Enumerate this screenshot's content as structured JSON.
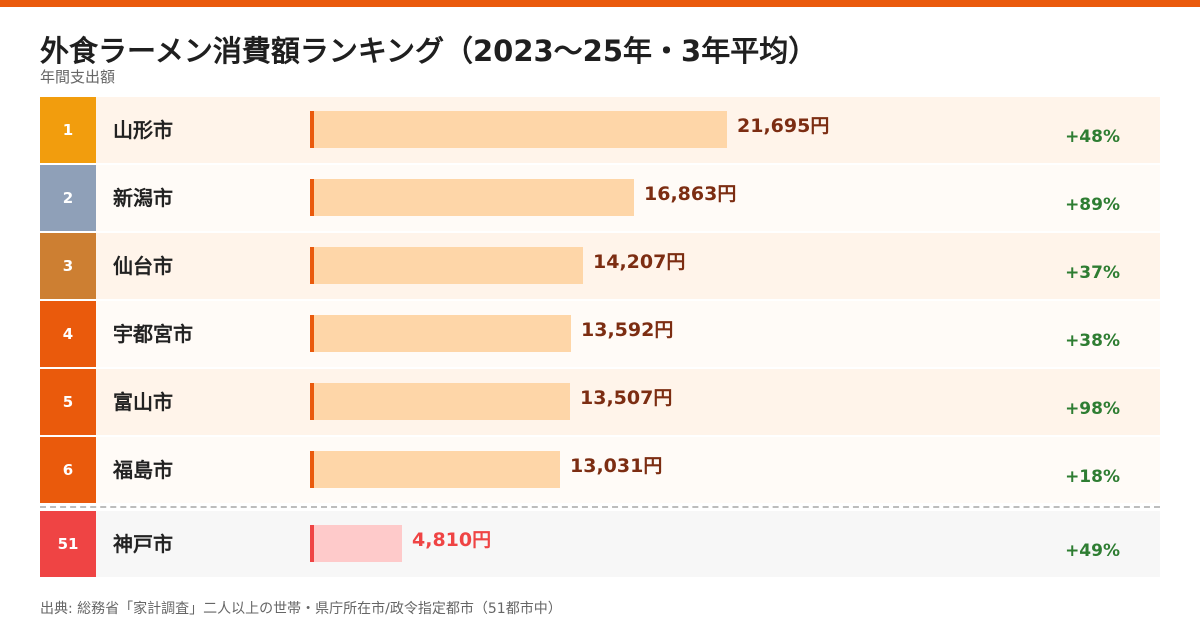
{
  "header": {
    "title": "外食ラーメン消費額ランキング（2023〜25年・3年平均）",
    "subtitle": "年間支出額"
  },
  "source": "出典: 総務省「家計調査」二人以上の世帯・県庁所在市/政令指定都市（51都市中）",
  "colors": {
    "accent": "#ea5a0c",
    "gold": "#f29d0d",
    "silver": "#8fa0b8",
    "bronze": "#cd7f32",
    "highlight": "#ef4444",
    "bar": "#fed6a8",
    "bar_highlight": "#fecaca",
    "value_text": "#7c2d12",
    "growth": "#2e7d32"
  },
  "chart_data": {
    "type": "bar",
    "orientation": "horizontal",
    "unit": "円",
    "categories": [
      "山形市",
      "新潟市",
      "仙台市",
      "宇都宮市",
      "富山市",
      "福島市",
      "神戸市"
    ],
    "ranks": [
      "1",
      "2",
      "3",
      "4",
      "5",
      "6",
      "51"
    ],
    "values": [
      21695,
      16863,
      14207,
      13592,
      13507,
      13031,
      4810
    ],
    "value_labels": [
      "21,695円",
      "16,863円",
      "14,207円",
      "13,592円",
      "13,507円",
      "13,031円",
      "4,810円"
    ],
    "growth": [
      "+48%",
      "+89%",
      "+37%",
      "+38%",
      "+98%",
      "+18%",
      "+49%"
    ],
    "highlight_index": 6,
    "xlim": [
      0,
      22000
    ]
  }
}
